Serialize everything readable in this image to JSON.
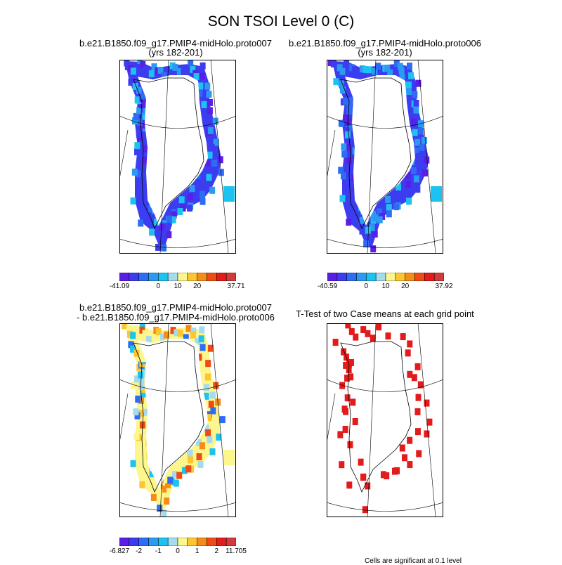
{
  "title": "SON TSOI Level 0 (C)",
  "panels": [
    {
      "id": "p1",
      "title_line1": "b.e21.B1850.f09_g17.PMIP4-midHolo.proto007",
      "title_line2": "(yrs 182-201)",
      "colorbar": {
        "colors": [
          "#5a1ee6",
          "#3c3cf0",
          "#2f6cf5",
          "#2b9af2",
          "#1ec2f0",
          "#a3dcef",
          "#fdf68c",
          "#fdc532",
          "#f78b17",
          "#ef4b15",
          "#e31b1b",
          "#d33a3a"
        ],
        "labels": [
          "-41.09",
          "0",
          "10",
          "20",
          "37.71"
        ],
        "label_positions": [
          0,
          4,
          6,
          8,
          12
        ]
      }
    },
    {
      "id": "p2",
      "title_line1": "b.e21.B1850.f09_g17.PMIP4-midHolo.proto006",
      "title_line2": "(yrs 182-201)",
      "colorbar": {
        "colors": [
          "#5a1ee6",
          "#3c3cf0",
          "#2f6cf5",
          "#2b9af2",
          "#1ec2f0",
          "#a3dcef",
          "#fdf68c",
          "#fdc532",
          "#f78b17",
          "#ef4b15",
          "#e31b1b",
          "#d33a3a"
        ],
        "labels": [
          "-40.59",
          "0",
          "10",
          "20",
          "37.92"
        ],
        "label_positions": [
          0,
          4,
          6,
          8,
          12
        ]
      }
    },
    {
      "id": "p3",
      "title_line1": "b.e21.B1850.f09_g17.PMIP4-midHolo.proto007",
      "title_line2": "- b.e21.B1850.f09_g17.PMIP4-midHolo.proto006",
      "colorbar": {
        "colors": [
          "#5a1ee6",
          "#3c3cf0",
          "#2f6cf5",
          "#2b9af2",
          "#1ec2f0",
          "#a3dcef",
          "#fdf68c",
          "#fdc532",
          "#f78b17",
          "#ef4b15",
          "#e31b1b",
          "#d33a3a"
        ],
        "labels": [
          "-6.827",
          "-2",
          "-1",
          "0",
          "1",
          "2",
          "11.705"
        ],
        "label_positions": [
          0,
          2,
          4,
          6,
          8,
          10,
          12
        ]
      }
    },
    {
      "id": "p4",
      "title_line1": "T-Test of two Case means at each grid point",
      "title_line2": "",
      "footnote": "Cells are significant at 0.1 level"
    }
  ],
  "chart_data": [
    {
      "type": "heatmap",
      "title": "b.e21.B1850.f09_g17.PMIP4-midHolo.proto007 (yrs 182-201)",
      "variable": "SON TSOI Level 0 (C)",
      "range": [
        -41.09,
        37.71
      ]
    },
    {
      "type": "heatmap",
      "title": "b.e21.B1850.f09_g17.PMIP4-midHolo.proto006 (yrs 182-201)",
      "variable": "SON TSOI Level 0 (C)",
      "range": [
        -40.59,
        37.92
      ]
    },
    {
      "type": "heatmap",
      "title": "b.e21.B1850.f09_g17.PMIP4-midHolo.proto007 - b.e21.B1850.f09_g17.PMIP4-midHolo.proto006",
      "range": [
        -6.827,
        11.705
      ]
    },
    {
      "type": "heatmap",
      "title": "T-Test of two Case means at each grid point",
      "significance_level": 0.1
    }
  ]
}
